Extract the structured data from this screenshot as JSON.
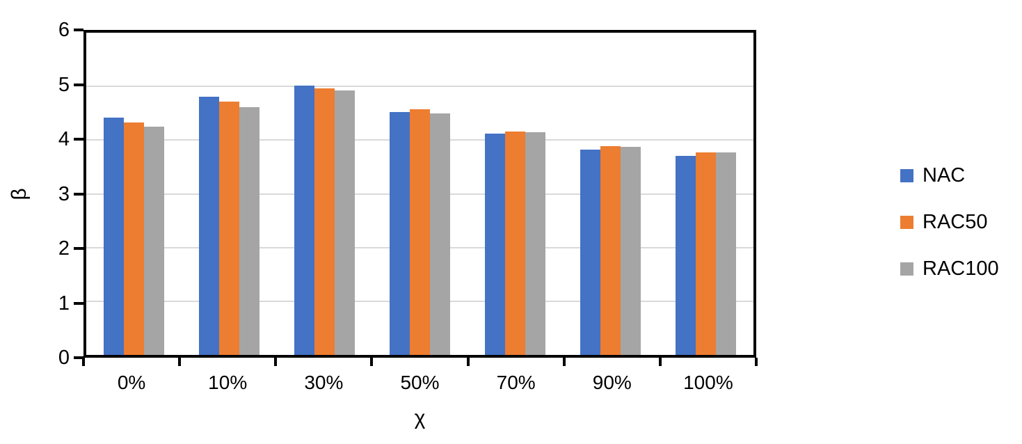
{
  "chart_data": {
    "type": "bar",
    "title": "",
    "categories": [
      "0%",
      "10%",
      "30%",
      "50%",
      "70%",
      "90%",
      "100%"
    ],
    "series": [
      {
        "name": "NAC",
        "color": "#4472C4",
        "values": [
          4.42,
          4.81,
          5.01,
          4.52,
          4.12,
          3.82,
          3.7
        ]
      },
      {
        "name": "RAC50",
        "color": "#ED7D31",
        "values": [
          4.33,
          4.72,
          4.96,
          4.57,
          4.16,
          3.89,
          3.77
        ]
      },
      {
        "name": "RAC100",
        "color": "#A5A5A5",
        "values": [
          4.25,
          4.62,
          4.93,
          4.5,
          4.15,
          3.88,
          3.77
        ]
      }
    ],
    "xlabel": "χ",
    "ylabel": "β",
    "ylim": [
      0,
      6
    ],
    "yticks": [
      0,
      1,
      2,
      3,
      4,
      5,
      6
    ],
    "grid": "horizontal-only",
    "legend_position": "right",
    "colors": {
      "gridline": "#D9D9D9",
      "axis": "#000000",
      "text": "#000000",
      "background": "#FFFFFF"
    }
  }
}
